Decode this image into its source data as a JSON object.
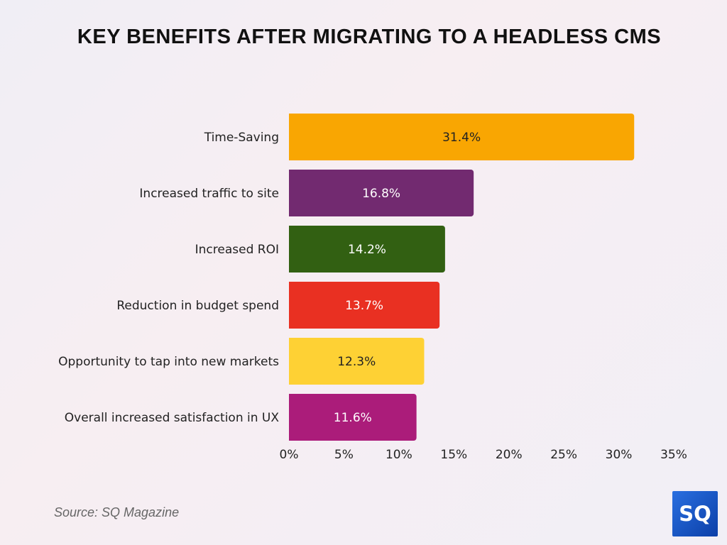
{
  "chart_data": {
    "type": "bar",
    "orientation": "horizontal",
    "title": "KEY BENEFITS AFTER MIGRATING TO A HEADLESS CMS",
    "categories": [
      "Time-Saving",
      "Increased traffic to site",
      "Increased ROI",
      "Reduction in budget spend",
      "Opportunity to tap into new markets",
      "Overall increased satisfaction in UX"
    ],
    "values": [
      31.4,
      16.8,
      14.2,
      13.7,
      12.3,
      11.6
    ],
    "data_labels": [
      "31.4%",
      "16.8%",
      "14.2%",
      "13.7%",
      "12.3%",
      "11.6%"
    ],
    "colors": [
      "#f9a602",
      "#722a70",
      "#326012",
      "#e93022",
      "#fed134",
      "#ab1c7a"
    ],
    "label_colors": [
      "#222222",
      "#ffffff",
      "#ffffff",
      "#ffffff",
      "#222222",
      "#ffffff"
    ],
    "xlim": [
      0,
      35
    ],
    "xticks": [
      "0%",
      "5%",
      "10%",
      "15%",
      "20%",
      "25%",
      "30%",
      "35%"
    ],
    "grid": false,
    "xlabel": "",
    "ylabel": ""
  },
  "source": "Source: SQ Magazine",
  "logo_text": "SQ"
}
